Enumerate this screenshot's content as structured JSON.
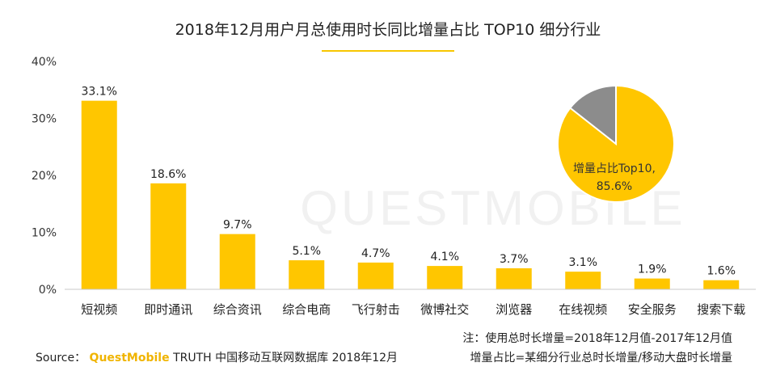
{
  "title": "2018年12月用户月总使用时长同比增量占比 TOP10 细分行业",
  "watermark": "QUESTMOBILE",
  "colors": {
    "bar": "#FFC600",
    "pie_main": "#FFC600",
    "pie_rest": "#8C8C8C",
    "axis": "#c8c8c8",
    "accent": "#F7C600"
  },
  "chart_data": {
    "type": "bar",
    "categories": [
      "短视频",
      "即时通讯",
      "综合资讯",
      "综合电商",
      "飞行射击",
      "微博社交",
      "浏览器",
      "在线视频",
      "安全服务",
      "搜索下载"
    ],
    "values": [
      33.1,
      18.6,
      9.7,
      5.1,
      4.7,
      4.1,
      3.7,
      3.1,
      1.9,
      1.6
    ],
    "value_labels": [
      "33.1%",
      "18.6%",
      "9.7%",
      "5.1%",
      "4.7%",
      "4.1%",
      "3.7%",
      "3.1%",
      "1.9%",
      "1.6%"
    ],
    "ylim": [
      0,
      40
    ],
    "yticks": [
      0,
      10,
      20,
      30,
      40
    ],
    "ytick_labels": [
      "0%",
      "10%",
      "20%",
      "30%",
      "40%"
    ],
    "grid": false
  },
  "pie": {
    "type": "pie",
    "slices": [
      {
        "value": 85.6
      },
      {
        "value": 14.4
      }
    ],
    "label_line1": "增量占比Top10,",
    "label_line2": "85.6%"
  },
  "notes": {
    "line1": "注：使用总时长增量=2018年12月值-2017年12月值",
    "line2": "增量占比=某细分行业总时长增量/移动大盘时长增量"
  },
  "source": {
    "prefix": "Source：",
    "brand": "QuestMobile",
    "rest": " TRUTH 中国移动互联网数据库 2018年12月"
  }
}
